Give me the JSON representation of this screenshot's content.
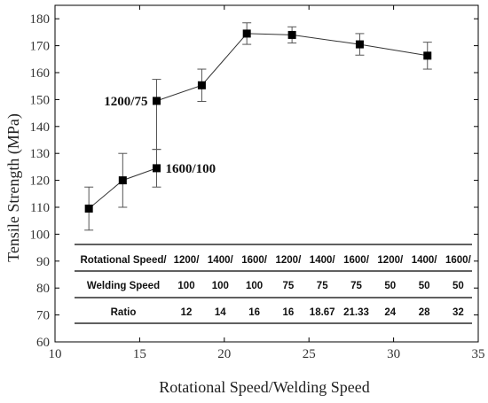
{
  "chart_data": {
    "type": "scatter",
    "xlabel": "Rotational Speed/Welding Speed",
    "ylabel": "Tensile Strength (MPa)",
    "xlim": [
      10,
      35
    ],
    "ylim": [
      60,
      185
    ],
    "x_ticks": [
      10,
      15,
      20,
      25,
      30,
      35
    ],
    "y_ticks": [
      60,
      70,
      80,
      90,
      100,
      110,
      120,
      130,
      140,
      150,
      160,
      170,
      180
    ],
    "grid": false,
    "series": [
      {
        "color": "#000000",
        "marker": "square",
        "points": [
          {
            "x": 12,
            "y": 109.5,
            "err_low": 8,
            "err_high": 8
          },
          {
            "x": 14,
            "y": 120,
            "err_low": 10,
            "err_high": 10
          },
          {
            "x": 16,
            "y": 124.5,
            "err_low": 7,
            "err_high": 7
          },
          {
            "x": 16,
            "y": 149.5,
            "err_low": 18,
            "err_high": 8
          },
          {
            "x": 18.67,
            "y": 155.3,
            "err_low": 6,
            "err_high": 6
          },
          {
            "x": 21.33,
            "y": 174.5,
            "err_low": 4,
            "err_high": 4
          },
          {
            "x": 24,
            "y": 174,
            "err_low": 3,
            "err_high": 3
          },
          {
            "x": 28,
            "y": 170.5,
            "err_low": 4,
            "err_high": 4
          },
          {
            "x": 32,
            "y": 166.3,
            "err_low": 5,
            "err_high": 5
          }
        ]
      }
    ],
    "annotations": [
      {
        "text": "1200/75",
        "x": 16,
        "y": 149.5,
        "side": "left"
      },
      {
        "text": "1600/100",
        "x": 16,
        "y": 124.5,
        "side": "right"
      }
    ],
    "table": {
      "row_labels": [
        "Rotational Speed/",
        "Welding Speed",
        "Ratio"
      ],
      "columns": [
        {
          "rot": "1200/",
          "weld": "100",
          "ratio": "12"
        },
        {
          "rot": "1400/",
          "weld": "100",
          "ratio": "14"
        },
        {
          "rot": "1600/",
          "weld": "100",
          "ratio": "16"
        },
        {
          "rot": "1200/",
          "weld": "75",
          "ratio": "16"
        },
        {
          "rot": "1400/",
          "weld": "75",
          "ratio": "18.67"
        },
        {
          "rot": "1600/",
          "weld": "75",
          "ratio": "21.33"
        },
        {
          "rot": "1200/",
          "weld": "50",
          "ratio": "24"
        },
        {
          "rot": "1400/",
          "weld": "50",
          "ratio": "28"
        },
        {
          "rot": "1600/",
          "weld": "50",
          "ratio": "32"
        }
      ]
    }
  }
}
